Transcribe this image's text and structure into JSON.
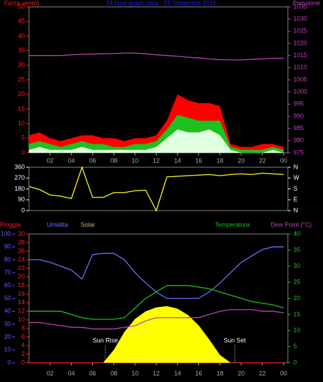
{
  "chart_data": [
    {
      "type": "line",
      "title": "24 hour graph data - 21 Settembre 2015",
      "ylabel": "Forza vento)",
      "y2label": "Pressione",
      "x": [
        0,
        1,
        2,
        3,
        4,
        5,
        6,
        7,
        8,
        9,
        10,
        11,
        12,
        13,
        14,
        15,
        16,
        17,
        18,
        19,
        20,
        21,
        22,
        23,
        24
      ],
      "xlim": [
        0,
        24.4
      ],
      "xticks": [
        {
          "value": 2,
          "label": "02"
        },
        {
          "value": 4,
          "label": "04"
        },
        {
          "value": 6,
          "label": "06"
        },
        {
          "value": 8,
          "label": "08"
        },
        10,
        12,
        14,
        16,
        18,
        20,
        22,
        {
          "value": 24,
          "label": "00"
        }
      ],
      "ylim": [
        0,
        50
      ],
      "yticks": [
        0,
        5,
        10,
        15,
        20,
        25,
        30,
        35,
        40,
        45,
        50
      ],
      "ycolor": "#ff2020",
      "y2lim": [
        975,
        1035
      ],
      "y2ticks": [
        975,
        980,
        985,
        990,
        995,
        1000,
        1005,
        1010,
        1015,
        1020,
        1025,
        1030,
        1035
      ],
      "y2color": "#c040c0",
      "series": [
        {
          "color": "#ff0000",
          "fill": true,
          "values": [
            6,
            7,
            5,
            4,
            5,
            6,
            6,
            5,
            5,
            4,
            5,
            5,
            6,
            11,
            20,
            18,
            17,
            17,
            16,
            3,
            2,
            2,
            3,
            3,
            2
          ]
        },
        {
          "color": "#20c020",
          "fill": true,
          "values": [
            3,
            4,
            3,
            2,
            3,
            4,
            3,
            3,
            2,
            2,
            3,
            3,
            4,
            8,
            13,
            12,
            11,
            11,
            11,
            2,
            1,
            1,
            1,
            2,
            1
          ]
        },
        {
          "color": "#e0ffe0",
          "fill": true,
          "values": [
            1,
            2,
            1,
            1,
            1,
            2,
            1,
            1,
            1,
            1,
            1,
            1,
            2,
            5,
            8,
            7,
            7,
            8,
            6,
            1,
            0,
            0,
            0,
            1,
            0
          ]
        },
        {
          "color": "#c040c0",
          "axis": "y2",
          "values": [
            1015,
            1015,
            1015,
            1015,
            1015.3,
            1015.5,
            1015.6,
            1015.7,
            1015.8,
            1016,
            1016,
            1015.7,
            1015.3,
            1015,
            1014.7,
            1014.3,
            1014,
            1013.6,
            1013.3,
            1013.2,
            1013.2,
            1013.4,
            1013.6,
            1013.8,
            1013.9
          ]
        }
      ]
    },
    {
      "type": "line",
      "x": [
        0,
        1,
        2,
        3,
        4,
        5,
        6,
        7,
        8,
        9,
        10,
        11,
        12,
        13,
        14,
        15,
        16,
        17,
        18,
        19,
        20,
        21,
        22,
        23,
        24
      ],
      "xlim": [
        0,
        24.4
      ],
      "ylim": [
        0,
        360
      ],
      "yticks": [
        0,
        90,
        180,
        270,
        360
      ],
      "ycolor": "#ffffff",
      "y2lim": [
        0,
        360
      ],
      "y2ticks": [
        {
          "value": 360,
          "label": "N"
        },
        {
          "value": 270,
          "label": "W"
        },
        {
          "value": 180,
          "label": "S"
        },
        {
          "value": 90,
          "label": "E"
        },
        {
          "value": 0,
          "label": "N"
        }
      ],
      "y2color": "#ffffff",
      "series": [
        {
          "color": "#ffff20",
          "values": [
            200,
            175,
            130,
            120,
            100,
            360,
            110,
            110,
            150,
            150,
            165,
            170,
            0,
            280,
            285,
            290,
            295,
            300,
            290,
            300,
            305,
            300,
            310,
            305,
            300
          ]
        }
      ]
    },
    {
      "type": "line",
      "x": [
        0,
        1,
        2,
        3,
        4,
        5,
        6,
        7,
        8,
        9,
        10,
        11,
        12,
        13,
        14,
        15,
        16,
        17,
        18,
        19,
        20,
        21,
        22,
        23,
        24
      ],
      "xlim": [
        0,
        24.4
      ],
      "xticks": [
        {
          "value": 2,
          "label": "02"
        },
        {
          "value": 4,
          "label": "04"
        },
        {
          "value": 6,
          "label": "06"
        },
        {
          "value": 8,
          "label": "08"
        },
        10,
        12,
        14,
        16,
        18,
        20,
        22,
        {
          "value": 24,
          "label": "00"
        }
      ],
      "ylim": [
        0,
        100
      ],
      "yticks": [
        0,
        10,
        20,
        30,
        40,
        50,
        60,
        70,
        80,
        90,
        100
      ],
      "ycolor": "#6060ff",
      "y3lim": [
        0,
        30
      ],
      "y3ticks": [
        0,
        2,
        4,
        6,
        8,
        10,
        12,
        14,
        16,
        18,
        20,
        22,
        24,
        26,
        28,
        30
      ],
      "y3color": "#ff2020",
      "y2lim": [
        0,
        40
      ],
      "y2ticks": [
        0,
        5,
        10,
        15,
        20,
        25,
        30,
        35,
        40
      ],
      "y2color": "#20c020",
      "series": [
        {
          "name": "Pioggia",
          "color": "#ff2020",
          "axis": "y3",
          "values": [
            0,
            0,
            0,
            0,
            0,
            0,
            0,
            0,
            0,
            0,
            0,
            0,
            0,
            0,
            0,
            0,
            0,
            0,
            0,
            0,
            0,
            0,
            0,
            0,
            0
          ]
        },
        {
          "name": "Umidita",
          "color": "#7070ff",
          "values": [
            80,
            80,
            78,
            75,
            72,
            65,
            84,
            85,
            85,
            80,
            70,
            62,
            55,
            50,
            50,
            50,
            50,
            55,
            62,
            70,
            78,
            83,
            88,
            90,
            90
          ]
        },
        {
          "name": "Solar",
          "color": "#ffff00",
          "name_color": "#c8b46c",
          "fill": true,
          "values": [
            0,
            0,
            0,
            0,
            0,
            0,
            0,
            0,
            10,
            24,
            34,
            40,
            43,
            44,
            42,
            37,
            29,
            18,
            6,
            0,
            0,
            0,
            0,
            0,
            0
          ]
        },
        {
          "name": "Temperatura",
          "color": "#20c020",
          "axis": "y2",
          "values": [
            16,
            16,
            16,
            16,
            15,
            14,
            13.5,
            13.5,
            13.5,
            14,
            17,
            20,
            22,
            24,
            24,
            24,
            23.5,
            23,
            22,
            21,
            20,
            19,
            18.5,
            18,
            17
          ]
        },
        {
          "name": "Dew Point (°C)",
          "color": "#c040c0",
          "axis": "y2",
          "values": [
            12.5,
            12.5,
            12,
            11.5,
            11,
            11,
            10.5,
            10.5,
            10.5,
            11,
            11.5,
            13,
            14,
            14,
            14,
            14,
            14,
            15,
            16,
            16.5,
            16.5,
            16.5,
            16,
            16,
            15.5
          ]
        }
      ],
      "annotations": [
        {
          "text": "Sun Rise",
          "x": 7.2
        },
        {
          "text": "Sun Set",
          "x": 19.4
        }
      ]
    }
  ]
}
